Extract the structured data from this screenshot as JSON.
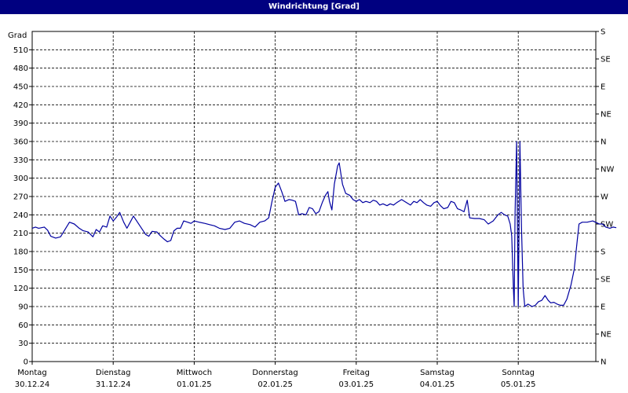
{
  "window": {
    "title": "Windrichtung [Grad]"
  },
  "chart_data": {
    "type": "line",
    "title": "Windrichtung [Grad]",
    "ylabel": "Grad",
    "ylim": [
      0,
      540
    ],
    "yticks": [
      0,
      30,
      60,
      90,
      120,
      150,
      180,
      210,
      240,
      270,
      300,
      330,
      360,
      390,
      420,
      450,
      480,
      510
    ],
    "right_ticks": [
      {
        "value": 0,
        "label": "N"
      },
      {
        "value": 45,
        "label": "NE"
      },
      {
        "value": 90,
        "label": "E"
      },
      {
        "value": 135,
        "label": "SE"
      },
      {
        "value": 180,
        "label": "S"
      },
      {
        "value": 225,
        "label": "SW"
      },
      {
        "value": 270,
        "label": "W"
      },
      {
        "value": 315,
        "label": "NW"
      },
      {
        "value": 360,
        "label": "N"
      },
      {
        "value": 405,
        "label": "NE"
      },
      {
        "value": 450,
        "label": "E"
      },
      {
        "value": 495,
        "label": "SE"
      },
      {
        "value": 540,
        "label": "S"
      }
    ],
    "xlim": [
      0,
      7
    ],
    "x_unit": "days",
    "day_labels": [
      {
        "day": "Montag",
        "date": "30.12.24"
      },
      {
        "day": "Dienstag",
        "date": "31.12.24"
      },
      {
        "day": "Mittwoch",
        "date": "01.01.25"
      },
      {
        "day": "Donnerstag",
        "date": "02.01.25"
      },
      {
        "day": "Freitag",
        "date": "03.01.25"
      },
      {
        "day": "Samstag",
        "date": "04.01.25"
      },
      {
        "day": "Sonntag",
        "date": "05.01.25"
      }
    ],
    "grid": true,
    "line_color": "#0000a0",
    "points": [
      [
        0.0,
        218
      ],
      [
        0.04,
        220
      ],
      [
        0.08,
        218
      ],
      [
        0.15,
        220
      ],
      [
        0.19,
        215
      ],
      [
        0.23,
        205
      ],
      [
        0.29,
        202
      ],
      [
        0.35,
        204
      ],
      [
        0.4,
        215
      ],
      [
        0.46,
        228
      ],
      [
        0.52,
        225
      ],
      [
        0.58,
        218
      ],
      [
        0.63,
        214
      ],
      [
        0.69,
        212
      ],
      [
        0.75,
        204
      ],
      [
        0.79,
        216
      ],
      [
        0.83,
        212
      ],
      [
        0.87,
        222
      ],
      [
        0.92,
        220
      ],
      [
        0.96,
        238
      ],
      [
        1.0,
        230
      ],
      [
        1.04,
        236
      ],
      [
        1.08,
        244
      ],
      [
        1.13,
        228
      ],
      [
        1.17,
        218
      ],
      [
        1.21,
        228
      ],
      [
        1.25,
        238
      ],
      [
        1.29,
        230
      ],
      [
        1.35,
        218
      ],
      [
        1.4,
        208
      ],
      [
        1.44,
        205
      ],
      [
        1.48,
        213
      ],
      [
        1.54,
        212
      ],
      [
        1.58,
        206
      ],
      [
        1.63,
        200
      ],
      [
        1.67,
        196
      ],
      [
        1.71,
        198
      ],
      [
        1.75,
        214
      ],
      [
        1.79,
        218
      ],
      [
        1.83,
        218
      ],
      [
        1.87,
        230
      ],
      [
        1.92,
        228
      ],
      [
        1.96,
        226
      ],
      [
        2.0,
        230
      ],
      [
        2.06,
        228
      ],
      [
        2.13,
        226
      ],
      [
        2.19,
        224
      ],
      [
        2.25,
        222
      ],
      [
        2.31,
        218
      ],
      [
        2.38,
        216
      ],
      [
        2.44,
        218
      ],
      [
        2.5,
        228
      ],
      [
        2.56,
        230
      ],
      [
        2.62,
        226
      ],
      [
        2.69,
        224
      ],
      [
        2.75,
        220
      ],
      [
        2.81,
        228
      ],
      [
        2.87,
        230
      ],
      [
        2.92,
        235
      ],
      [
        2.96,
        262
      ],
      [
        3.0,
        285
      ],
      [
        3.04,
        292
      ],
      [
        3.08,
        278
      ],
      [
        3.12,
        262
      ],
      [
        3.17,
        265
      ],
      [
        3.21,
        264
      ],
      [
        3.25,
        262
      ],
      [
        3.29,
        240
      ],
      [
        3.33,
        242
      ],
      [
        3.38,
        240
      ],
      [
        3.42,
        252
      ],
      [
        3.46,
        250
      ],
      [
        3.5,
        242
      ],
      [
        3.54,
        245
      ],
      [
        3.58,
        260
      ],
      [
        3.62,
        272
      ],
      [
        3.65,
        278
      ],
      [
        3.67,
        262
      ],
      [
        3.7,
        248
      ],
      [
        3.73,
        290
      ],
      [
        3.77,
        320
      ],
      [
        3.79,
        325
      ],
      [
        3.83,
        290
      ],
      [
        3.87,
        275
      ],
      [
        3.92,
        272
      ],
      [
        3.96,
        265
      ],
      [
        4.0,
        262
      ],
      [
        4.04,
        265
      ],
      [
        4.08,
        260
      ],
      [
        4.12,
        262
      ],
      [
        4.17,
        260
      ],
      [
        4.21,
        264
      ],
      [
        4.25,
        262
      ],
      [
        4.29,
        256
      ],
      [
        4.33,
        258
      ],
      [
        4.38,
        255
      ],
      [
        4.42,
        258
      ],
      [
        4.46,
        256
      ],
      [
        4.5,
        260
      ],
      [
        4.56,
        265
      ],
      [
        4.62,
        260
      ],
      [
        4.67,
        256
      ],
      [
        4.71,
        262
      ],
      [
        4.75,
        260
      ],
      [
        4.79,
        265
      ],
      [
        4.83,
        260
      ],
      [
        4.87,
        256
      ],
      [
        4.92,
        254
      ],
      [
        4.96,
        260
      ],
      [
        5.0,
        262
      ],
      [
        5.04,
        255
      ],
      [
        5.08,
        250
      ],
      [
        5.13,
        252
      ],
      [
        5.17,
        262
      ],
      [
        5.21,
        260
      ],
      [
        5.25,
        250
      ],
      [
        5.29,
        248
      ],
      [
        5.33,
        245
      ],
      [
        5.37,
        264
      ],
      [
        5.4,
        235
      ],
      [
        5.46,
        234
      ],
      [
        5.52,
        234
      ],
      [
        5.58,
        232
      ],
      [
        5.63,
        225
      ],
      [
        5.69,
        230
      ],
      [
        5.75,
        240
      ],
      [
        5.79,
        244
      ],
      [
        5.83,
        240
      ],
      [
        5.87,
        238
      ],
      [
        5.9,
        225
      ],
      [
        5.92,
        205
      ],
      [
        5.94,
        120
      ],
      [
        5.95,
        90
      ],
      [
        5.96,
        240
      ],
      [
        5.98,
        360
      ],
      [
        6.0,
        90
      ],
      [
        6.02,
        360
      ],
      [
        6.04,
        220
      ],
      [
        6.06,
        120
      ],
      [
        6.08,
        90
      ],
      [
        6.12,
        94
      ],
      [
        6.17,
        90
      ],
      [
        6.21,
        92
      ],
      [
        6.25,
        98
      ],
      [
        6.29,
        100
      ],
      [
        6.33,
        108
      ],
      [
        6.37,
        100
      ],
      [
        6.4,
        96
      ],
      [
        6.44,
        97
      ],
      [
        6.48,
        94
      ],
      [
        6.52,
        92
      ],
      [
        6.56,
        92
      ],
      [
        6.6,
        102
      ],
      [
        6.65,
        125
      ],
      [
        6.69,
        150
      ],
      [
        6.73,
        200
      ],
      [
        6.75,
        225
      ],
      [
        6.79,
        228
      ],
      [
        6.85,
        228
      ],
      [
        6.92,
        230
      ],
      [
        7.0,
        225
      ],
      [
        7.04,
        225
      ],
      [
        7.08,
        220
      ],
      [
        7.13,
        218
      ],
      [
        7.17,
        220
      ],
      [
        7.21,
        219
      ]
    ]
  }
}
